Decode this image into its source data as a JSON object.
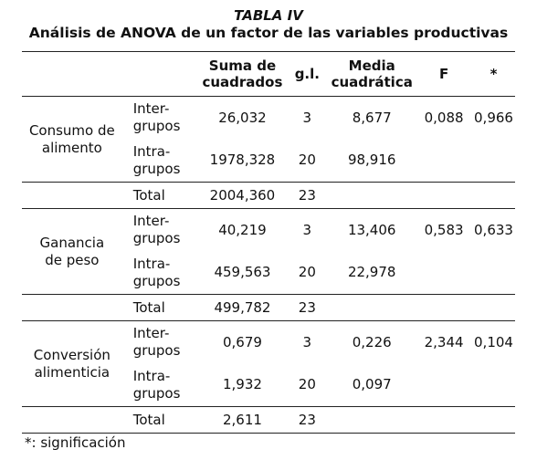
{
  "title": "TABLA IV",
  "subtitle": "Análisis de ANOVA de un factor de las variables productivas",
  "headers": {
    "ss": [
      "Suma de",
      "cuadrados"
    ],
    "df": "g.l.",
    "ms": [
      "Media",
      "cuadrática"
    ],
    "f": "F",
    "sig": "*"
  },
  "groups": [
    {
      "name": [
        "Consumo de",
        "alimento"
      ],
      "inter": {
        "label": [
          "Inter-",
          "grupos"
        ],
        "ss": "26,032",
        "df": "3",
        "ms": "8,677",
        "f": "0,088",
        "sig": "0,966"
      },
      "intra": {
        "label": [
          "Intra-",
          "grupos"
        ],
        "ss": "1978,328",
        "df": "20",
        "ms": "98,916"
      },
      "total": {
        "label": "Total",
        "ss": "2004,360",
        "df": "23"
      }
    },
    {
      "name": [
        "Ganancia",
        "de peso"
      ],
      "inter": {
        "label": [
          "Inter-",
          "grupos"
        ],
        "ss": "40,219",
        "df": "3",
        "ms": "13,406",
        "f": "0,583",
        "sig": "0,633"
      },
      "intra": {
        "label": [
          "Intra-",
          "grupos"
        ],
        "ss": "459,563",
        "df": "20",
        "ms": "22,978"
      },
      "total": {
        "label": "Total",
        "ss": "499,782",
        "df": "23"
      }
    },
    {
      "name": [
        "Conversión",
        "alimenticia"
      ],
      "inter": {
        "label": [
          "Inter-",
          "grupos"
        ],
        "ss": "0,679",
        "df": "3",
        "ms": "0,226",
        "f": "2,344",
        "sig": "0,104"
      },
      "intra": {
        "label": [
          "Intra-",
          "grupos"
        ],
        "ss": "1,932",
        "df": "20",
        "ms": "0,097"
      },
      "total": {
        "label": "Total",
        "ss": "2,611",
        "df": "23"
      }
    }
  ],
  "footnote": "*: significación"
}
